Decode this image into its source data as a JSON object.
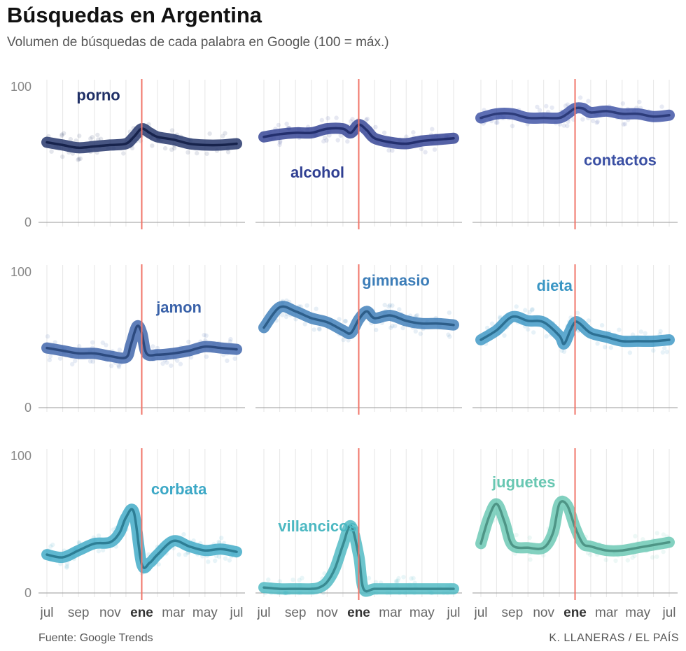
{
  "title": "Búsquedas en Argentina",
  "subtitle": "Volumen de búsquedas de cada palabra en Google (100 = máx.)",
  "source": "Fuente: Google Trends",
  "credit": "K. LLANERAS / EL PAÍS",
  "colors": {
    "marker_line": "#f07468",
    "axis": "#999999",
    "grid": "#e6e6e6",
    "tick_text": "#888888",
    "month_text": "#666666"
  },
  "chart_data": {
    "type": "line",
    "layout": "small-multiples 3x3",
    "ylim": [
      0,
      100
    ],
    "y_ticks": [
      0,
      100
    ],
    "x_tick_labels": [
      "jul",
      "sep",
      "nov",
      "ene",
      "mar",
      "may",
      "jul"
    ],
    "x_tick_positions": [
      0,
      2,
      4,
      6,
      8,
      10,
      12
    ],
    "x_highlight": {
      "label": "ene",
      "position": 6
    },
    "x_unit": "months since jul",
    "xlim": [
      0,
      12
    ],
    "panels": [
      {
        "term": "porno",
        "color": "#1f2f66",
        "label_pos": "upper-left",
        "x": [
          0,
          1,
          2,
          3,
          4,
          5,
          5.5,
          6,
          6.5,
          7,
          8,
          9,
          10,
          11,
          12
        ],
        "y": [
          59,
          57,
          55,
          56,
          57,
          58,
          63,
          69,
          66,
          63,
          61,
          58,
          57,
          57,
          58
        ]
      },
      {
        "term": "alcohol",
        "color": "#2f3f92",
        "label_pos": "lower-left",
        "x": [
          0,
          1,
          2,
          3,
          4,
          5,
          5.5,
          6,
          6.5,
          7,
          8,
          9,
          10,
          11,
          12
        ],
        "y": [
          63,
          65,
          66,
          66,
          69,
          69,
          66,
          72,
          68,
          62,
          59,
          58,
          60,
          61,
          62
        ]
      },
      {
        "term": "contactos",
        "color": "#3a4fa3",
        "label_pos": "lower-right",
        "x": [
          0,
          1,
          2,
          3,
          4,
          5,
          5.5,
          6,
          6.5,
          7,
          8,
          9,
          10,
          11,
          12
        ],
        "y": [
          77,
          80,
          80,
          77,
          77,
          77,
          80,
          84,
          84,
          81,
          82,
          80,
          80,
          78,
          79
        ]
      },
      {
        "term": "jamon",
        "color": "#3a62a9",
        "label_pos": "upper-center",
        "x": [
          0,
          1,
          2,
          3,
          4,
          5,
          5.3,
          5.7,
          6,
          6.3,
          7,
          8,
          9,
          10,
          11,
          12
        ],
        "y": [
          44,
          42,
          40,
          40,
          38,
          37,
          46,
          60,
          55,
          40,
          39,
          40,
          42,
          45,
          44,
          43
        ]
      },
      {
        "term": "gimnasio",
        "color": "#3c7db8",
        "label_pos": "upper-right",
        "x": [
          0,
          1,
          2,
          3,
          4,
          5,
          5.5,
          6,
          6.5,
          7,
          8,
          9,
          10,
          11,
          12
        ],
        "y": [
          59,
          74,
          71,
          66,
          63,
          57,
          55,
          65,
          71,
          66,
          68,
          64,
          62,
          62,
          61
        ]
      },
      {
        "term": "dieta",
        "color": "#3a96c4",
        "label_pos": "upper-center",
        "x": [
          0,
          1,
          2,
          3,
          4,
          5,
          5.3,
          5.7,
          6,
          6.3,
          7,
          8,
          9,
          10,
          11,
          12
        ],
        "y": [
          50,
          57,
          67,
          64,
          63,
          53,
          47,
          57,
          63,
          62,
          55,
          52,
          49,
          49,
          49,
          50
        ]
      },
      {
        "term": "corbata",
        "color": "#3ca8c6",
        "label_pos": "upper-right",
        "x": [
          0,
          1,
          2,
          3,
          4,
          4.6,
          5,
          5.5,
          6,
          6.5,
          7,
          8,
          9,
          10,
          11,
          12
        ],
        "y": [
          28,
          26,
          31,
          36,
          37,
          44,
          55,
          59,
          21,
          22,
          28,
          38,
          34,
          31,
          32,
          30
        ]
      },
      {
        "term": "villancicos",
        "color": "#4cb8c2",
        "label_pos": "center-left",
        "x": [
          0,
          1,
          2,
          3,
          3.5,
          4,
          4.5,
          5,
          5.5,
          6,
          6.3,
          7,
          8,
          9,
          10,
          11,
          12
        ],
        "y": [
          4,
          3,
          3,
          3,
          4,
          8,
          18,
          35,
          49,
          27,
          3,
          3,
          3,
          3,
          3,
          3,
          3
        ]
      },
      {
        "term": "juguetes",
        "color": "#68c7b2",
        "label_pos": "upper-center",
        "x": [
          0,
          0.5,
          1,
          1.5,
          2,
          3,
          4,
          4.6,
          5,
          5.5,
          6,
          6.5,
          7,
          8,
          9,
          10,
          11,
          12
        ],
        "y": [
          36,
          55,
          65,
          52,
          35,
          33,
          33,
          44,
          65,
          64,
          48,
          36,
          34,
          31,
          31,
          33,
          35,
          37
        ]
      }
    ]
  }
}
